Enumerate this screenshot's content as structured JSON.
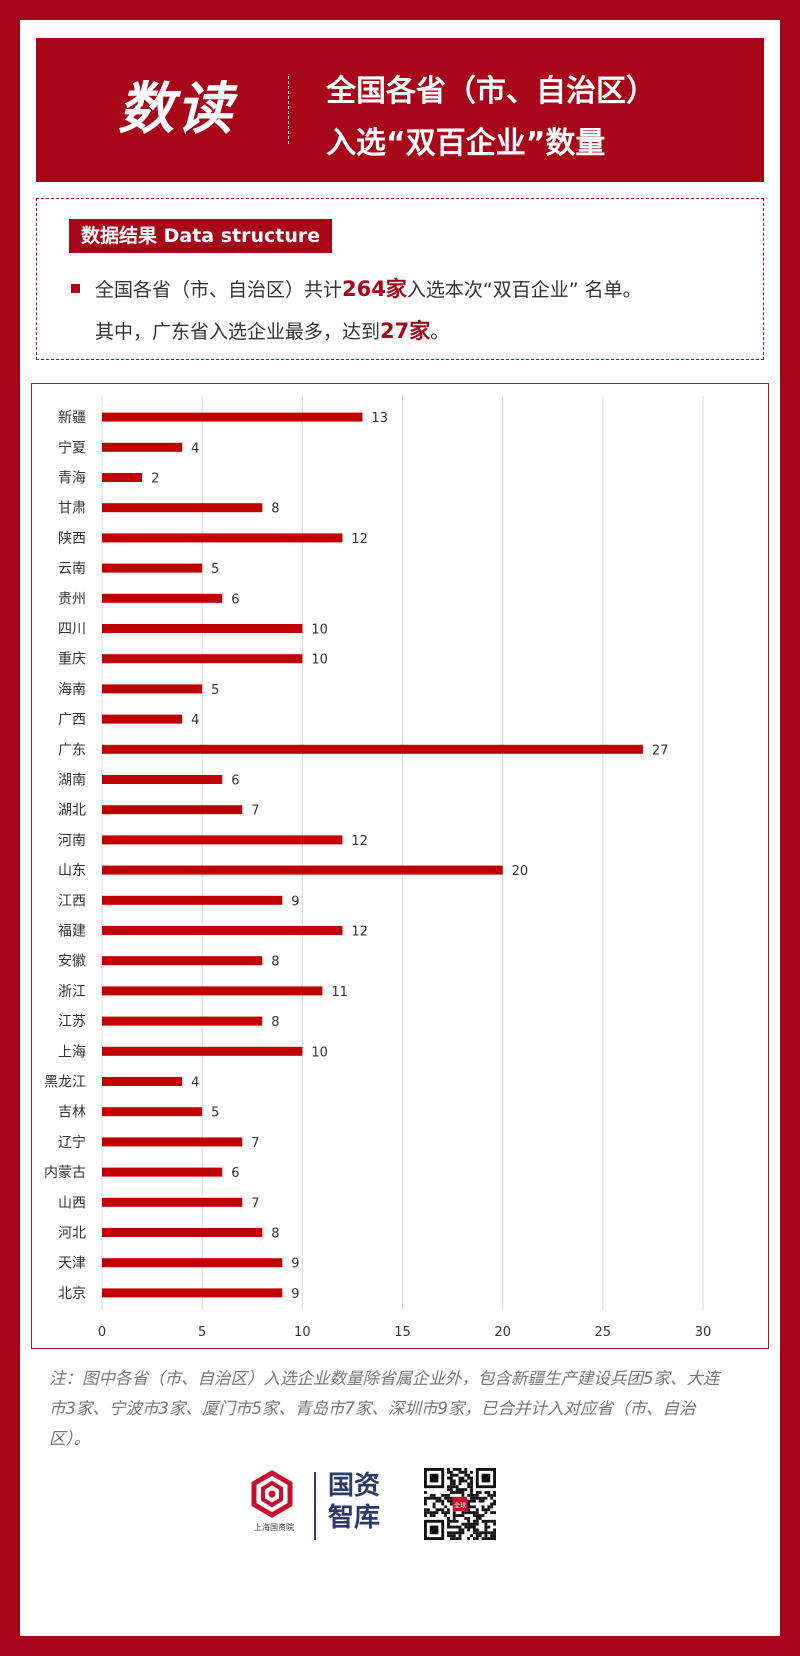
{
  "header": {
    "big_title": "数读",
    "title_line1": "全国各省（市、自治区）",
    "title_line2": "入选“双百企业”数量"
  },
  "summary": {
    "tag": "数据结果 Data structure",
    "line1_pre": "全国各省（市、自治区）共计",
    "line1_num": "264家",
    "line1_post": "入选本次“双百企业” 名单。",
    "line2_pre": "其中，广东省入选企业最多，达到",
    "line2_num": "27家",
    "line2_post": "。"
  },
  "chart_data": {
    "type": "bar",
    "orientation": "horizontal",
    "categories": [
      "新疆",
      "宁夏",
      "青海",
      "甘肃",
      "陕西",
      "云南",
      "贵州",
      "四川",
      "重庆",
      "海南",
      "广西",
      "广东",
      "湖南",
      "湖北",
      "河南",
      "山东",
      "江西",
      "福建",
      "安徽",
      "浙江",
      "江苏",
      "上海",
      "黑龙江",
      "吉林",
      "辽宁",
      "内蒙古",
      "山西",
      "河北",
      "天津",
      "北京"
    ],
    "values": [
      13,
      4,
      2,
      8,
      12,
      5,
      6,
      10,
      10,
      5,
      4,
      27,
      6,
      7,
      12,
      20,
      9,
      12,
      8,
      11,
      8,
      10,
      4,
      5,
      7,
      6,
      7,
      8,
      9,
      9
    ],
    "xlim": [
      0,
      30
    ],
    "xticks": [
      0,
      5,
      10,
      15,
      20,
      25,
      30
    ],
    "grid": true,
    "bar_color": "#c00000"
  },
  "note": "注：图中各省（市、自治区）入选企业数量除省属企业外，包含新疆生产建设兵团5家、大连市3家、宁波市3家、厦门市5家、青岛市7家、深圳市9家，已合并计入对应省（市、自治区）。",
  "footer": {
    "org": "上海国资院",
    "brand_line1": "国资",
    "brand_line2": "智库",
    "qr_badge": "全球"
  },
  "colors": {
    "brand_red": "#a8071a",
    "bar": "#c00000",
    "navy": "#2a3a6b"
  }
}
